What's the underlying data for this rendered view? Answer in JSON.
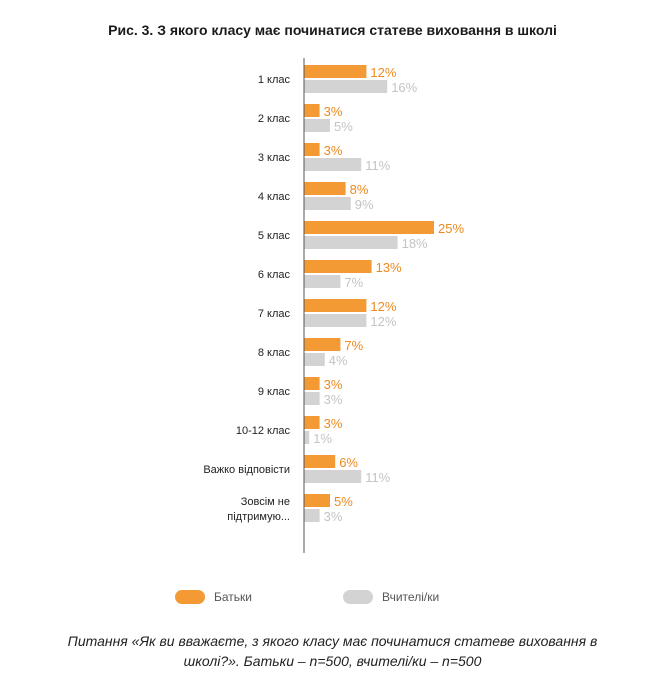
{
  "title": "Рис. 3. З якого класу має починатися статеве виховання в школі",
  "colors": {
    "parents": "#F39A35",
    "teachers": "#D3D3D3",
    "axis": "#555555"
  },
  "chart_data": {
    "type": "bar",
    "orientation": "horizontal",
    "categories": [
      "1 клас",
      "2 клас",
      "3 клас",
      "4 клас",
      "5 клас",
      "6 клас",
      "7 клас",
      "8 клас",
      "9 клас",
      "10-12  клас",
      "Важко відповісти",
      "Зовсім не підтримую..."
    ],
    "series": [
      {
        "name": "Батьки",
        "values": [
          12,
          3,
          3,
          8,
          25,
          13,
          12,
          7,
          3,
          3,
          6,
          5
        ],
        "labels": [
          "12%",
          "3%",
          "3%",
          "8%",
          "25%",
          "13%",
          "12%",
          "7%",
          "3%",
          "3%",
          "6%",
          "5%"
        ]
      },
      {
        "name": "Вчителі/ки",
        "values": [
          16,
          5,
          11,
          9,
          18,
          7,
          12,
          4,
          3,
          1,
          11,
          3
        ],
        "labels": [
          "16%",
          "5%",
          "11%",
          "9%",
          "18%",
          "7%",
          "12%",
          "4%",
          "3%",
          "1%",
          "11%",
          "3%"
        ]
      }
    ],
    "unit": "%",
    "legend": "bottom"
  },
  "caption": "Питання «Як ви вважаєте, з якого класу має починатися статеве виховання в школі?». Батьки – n=500, вчителі/ки – n=500"
}
